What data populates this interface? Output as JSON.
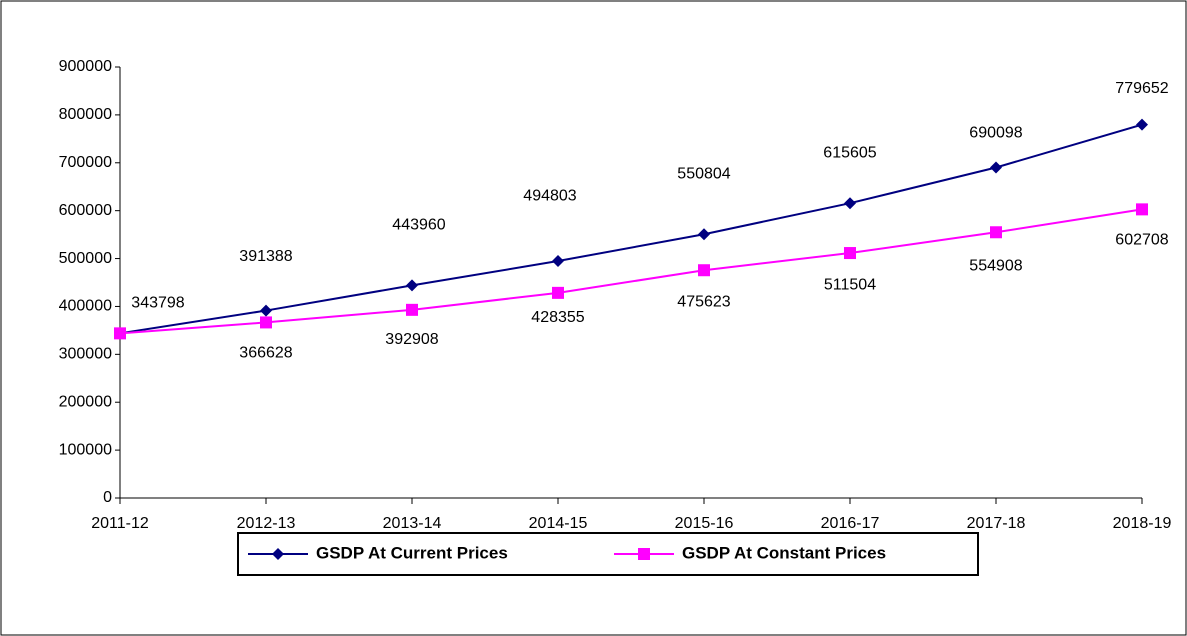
{
  "chart_data": {
    "type": "line",
    "categories": [
      "2011-12",
      "2012-13",
      "2013-14",
      "2014-15",
      "2015-16",
      "2016-17",
      "2017-18",
      "2018-19"
    ],
    "series": [
      {
        "name": "GSDP At Current Prices",
        "color": "#000080",
        "marker": "diamond",
        "values": [
          343798,
          391388,
          443960,
          494803,
          550804,
          615605,
          690098,
          779652
        ]
      },
      {
        "name": "GSDP At Constant Prices",
        "color": "#ff00ff",
        "marker": "square",
        "values": [
          343798,
          366628,
          392908,
          428355,
          475623,
          511504,
          554908,
          602708
        ]
      }
    ],
    "ylim": [
      0,
      900000
    ],
    "yticks": [
      0,
      100000,
      200000,
      300000,
      400000,
      500000,
      600000,
      700000,
      800000,
      900000
    ],
    "grid": false,
    "legend": "bottom"
  }
}
